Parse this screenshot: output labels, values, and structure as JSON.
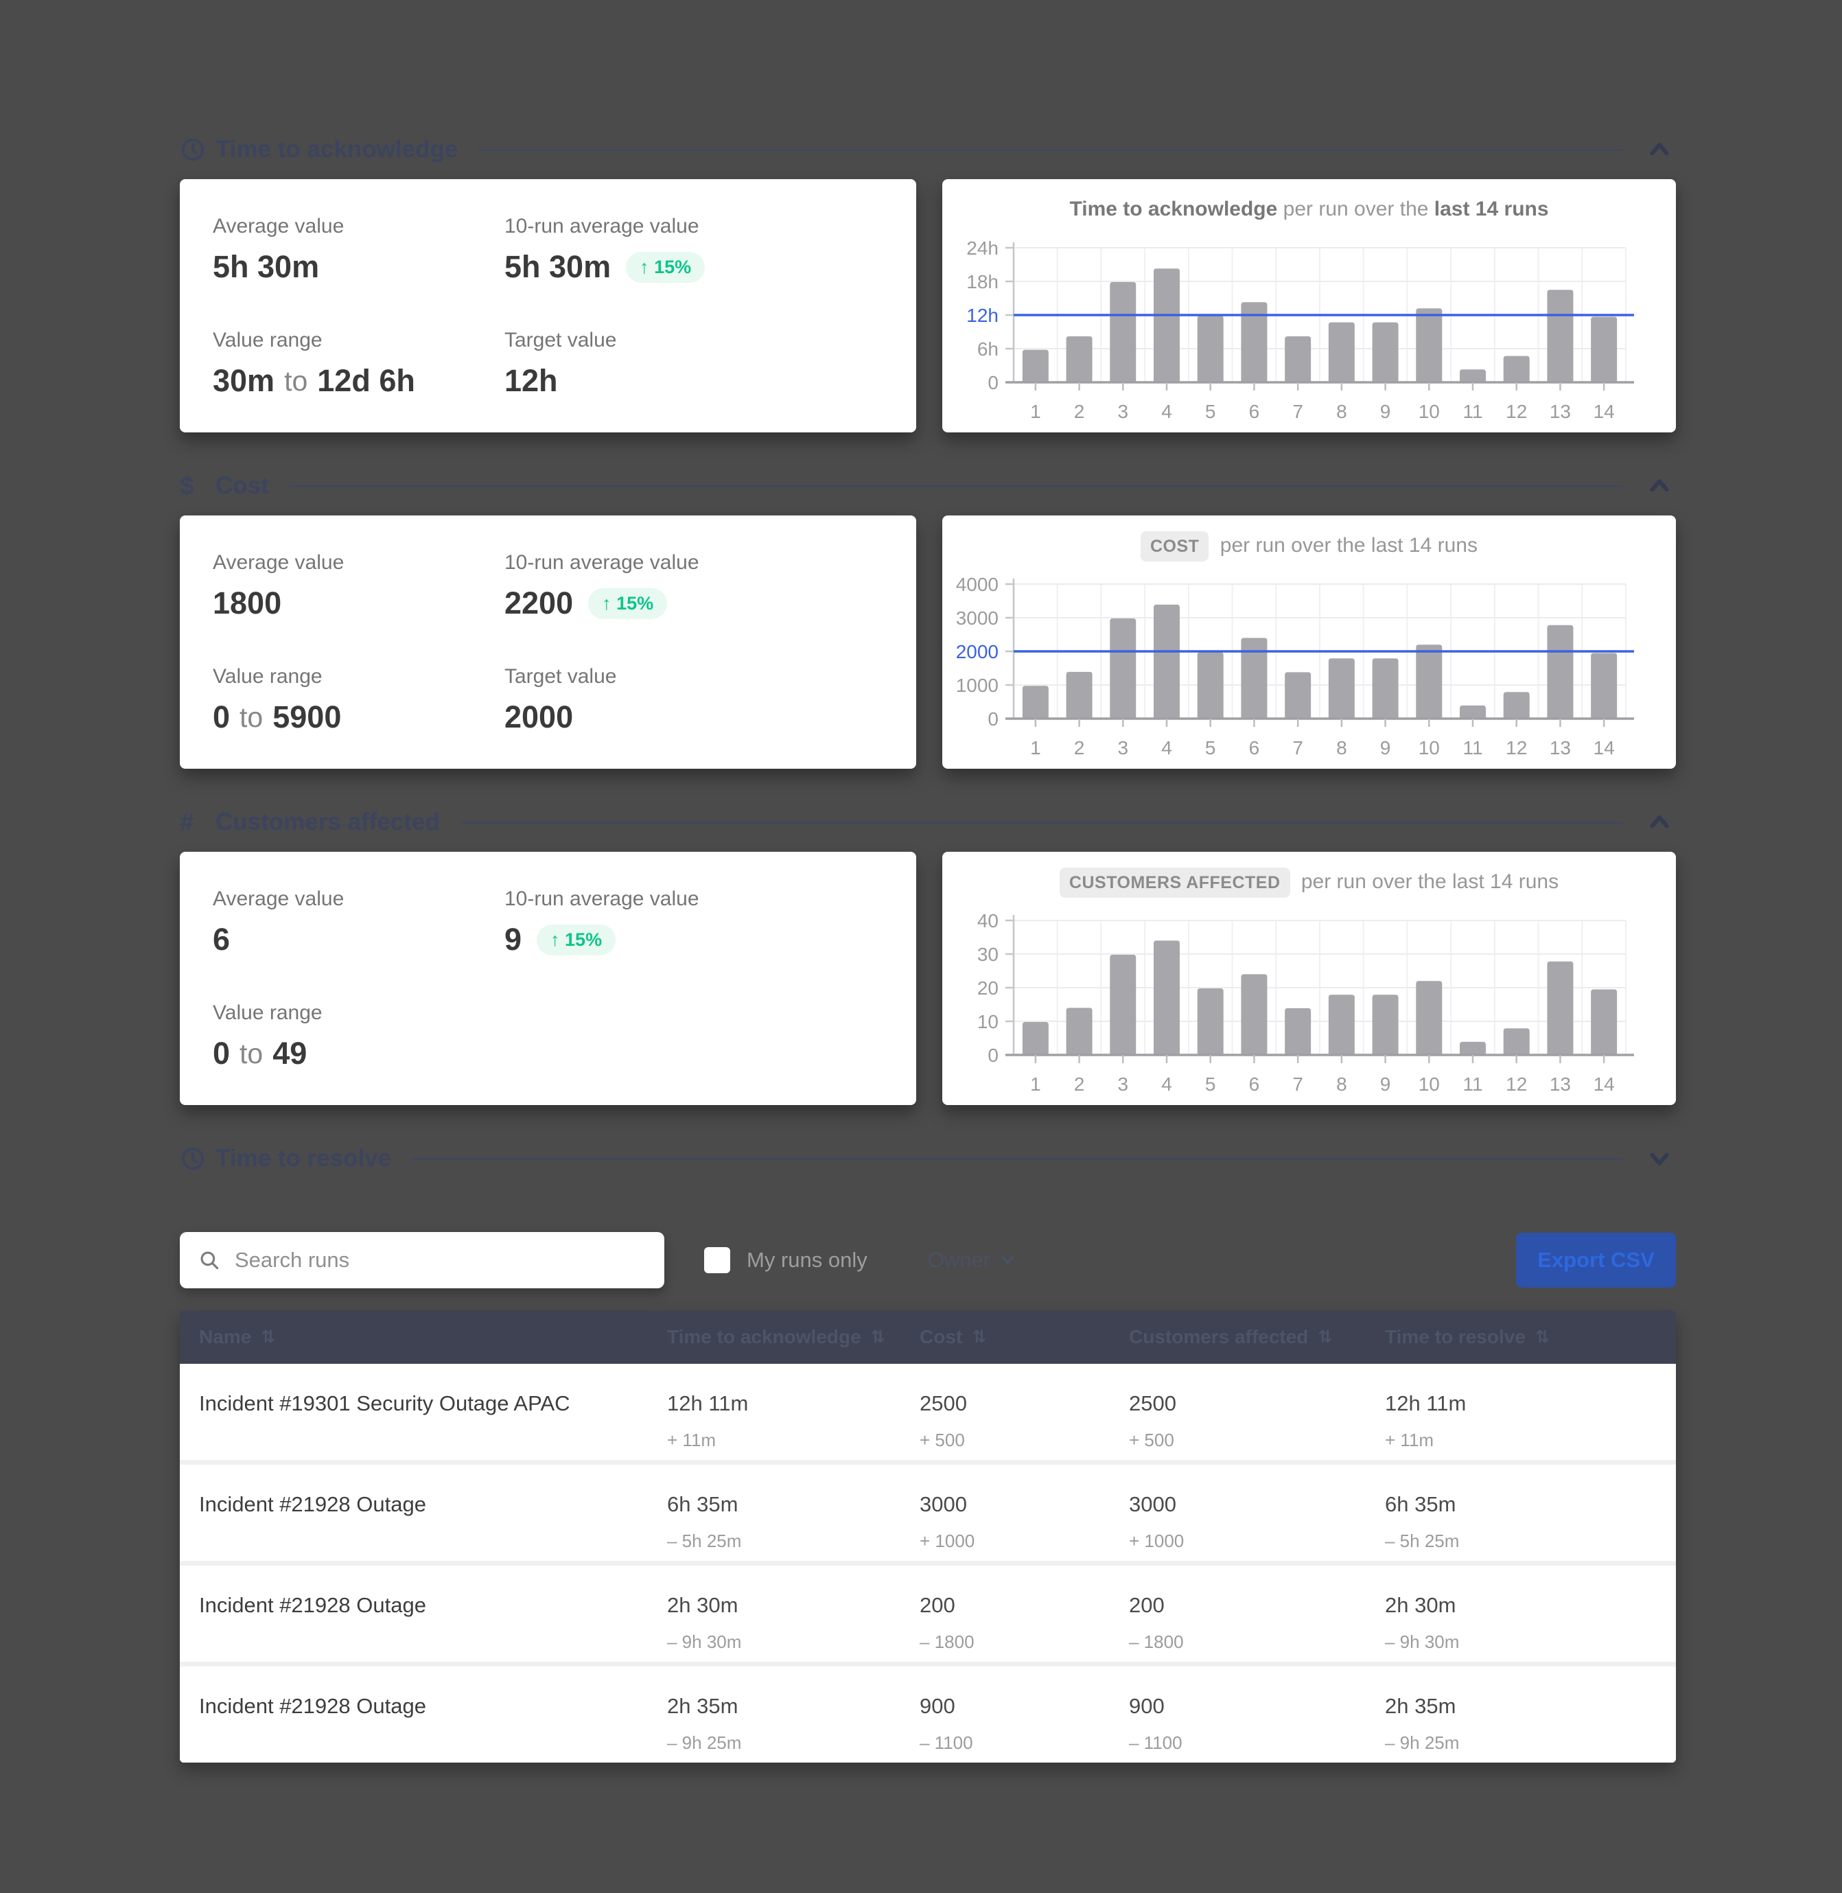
{
  "page": {
    "background": "#4b4b4b"
  },
  "colors": {
    "accent_blue": "#3a63e2",
    "bar_gray": "#a7a7ab",
    "badge_green": "#0fc48c",
    "badge_bg": "#e7f9f1",
    "section_title": "#3c445e",
    "table_header_bg": "#3e4252",
    "export_btn_bg": "#2d52ab",
    "export_btn_text": "#2e68de"
  },
  "sections": [
    {
      "title": "Time to acknowledge",
      "icon": "clock-icon",
      "collapsed": false,
      "chevron": "chevron-up-icon",
      "chart_ref": 0,
      "card": {
        "metrics": [
          {
            "label": "Average value",
            "value": "5h 30m"
          },
          {
            "label": "10-run average value",
            "value": "5h 30m",
            "badge": "↑ 15%"
          },
          {
            "label": "Value range",
            "from": "30m",
            "joiner": "to",
            "to": "12d 6h"
          },
          {
            "label": "Target value",
            "value": "12h"
          }
        ]
      }
    },
    {
      "title": "Cost",
      "icon": "dollar-icon",
      "collapsed": false,
      "chevron": "chevron-up-icon",
      "chart_ref": 1,
      "card": {
        "metrics": [
          {
            "label": "Average value",
            "value": "1800"
          },
          {
            "label": "10-run average value",
            "value": "2200",
            "badge": "↑ 15%"
          },
          {
            "label": "Value range",
            "from": "0",
            "joiner": "to",
            "to": "5900"
          },
          {
            "label": "Target value",
            "value": "2000"
          }
        ]
      }
    },
    {
      "title": "Customers affected",
      "icon": "hash-icon",
      "collapsed": false,
      "chevron": "chevron-up-icon",
      "chart_ref": 2,
      "card": {
        "metrics": [
          {
            "label": "Average value",
            "value": "6"
          },
          {
            "label": "10-run average value",
            "value": "9",
            "badge": "↑ 15%"
          },
          {
            "label": "Value range",
            "from": "0",
            "joiner": "to",
            "to": "49"
          }
        ]
      }
    },
    {
      "title": "Time to resolve",
      "icon": "clock-icon",
      "collapsed": true,
      "chevron": "chevron-down-icon"
    }
  ],
  "chart_data": [
    {
      "type": "bar",
      "title_segments": [
        {
          "text": "Time to acknowledge",
          "style": "bold"
        },
        {
          "text": " per run over the ",
          "style": "normal"
        },
        {
          "text": "last 14 runs",
          "style": "bold"
        }
      ],
      "categories": [
        "1",
        "2",
        "3",
        "4",
        "5",
        "6",
        "7",
        "8",
        "9",
        "10",
        "11",
        "12",
        "13",
        "14"
      ],
      "values": [
        5.8,
        8.2,
        17.9,
        20.3,
        11.9,
        14.3,
        8.2,
        10.7,
        10.7,
        13.2,
        2.3,
        4.7,
        16.5,
        11.7
      ],
      "unit": "hours",
      "ylim": [
        0,
        24
      ],
      "yticks": [
        {
          "v": 0,
          "label": "0"
        },
        {
          "v": 6,
          "label": "6h"
        },
        {
          "v": 12,
          "label": "12h"
        },
        {
          "v": 18,
          "label": "18h"
        },
        {
          "v": 24,
          "label": "24h"
        }
      ],
      "target": {
        "v": 12,
        "label": "12h"
      },
      "grid": true,
      "legend": "none"
    },
    {
      "type": "bar",
      "title_segments": [
        {
          "text": "COST",
          "style": "pill"
        },
        {
          "text": " per run over the last 14 runs",
          "style": "normal"
        }
      ],
      "categories": [
        "1",
        "2",
        "3",
        "4",
        "5",
        "6",
        "7",
        "8",
        "9",
        "10",
        "11",
        "12",
        "13",
        "14"
      ],
      "values": [
        975,
        1390,
        2980,
        3390,
        1975,
        2400,
        1380,
        1790,
        1790,
        2200,
        390,
        790,
        2780,
        1950
      ],
      "unit": "cost",
      "ylim": [
        0,
        4000
      ],
      "yticks": [
        {
          "v": 0,
          "label": "0"
        },
        {
          "v": 1000,
          "label": "1000"
        },
        {
          "v": 2000,
          "label": "2000"
        },
        {
          "v": 3000,
          "label": "3000"
        },
        {
          "v": 4000,
          "label": "4000"
        }
      ],
      "target": {
        "v": 2000,
        "label": "2000"
      },
      "grid": true,
      "legend": "none"
    },
    {
      "type": "bar",
      "title_segments": [
        {
          "text": "CUSTOMERS AFFECTED",
          "style": "pill"
        },
        {
          "text": " per run over the last 14 runs",
          "style": "normal"
        }
      ],
      "categories": [
        "1",
        "2",
        "3",
        "4",
        "5",
        "6",
        "7",
        "8",
        "9",
        "10",
        "11",
        "12",
        "13",
        "14"
      ],
      "values": [
        9.8,
        14,
        29.8,
        34,
        19.8,
        24,
        13.9,
        17.9,
        17.9,
        22,
        3.9,
        7.9,
        27.8,
        19.5
      ],
      "unit": "customers",
      "ylim": [
        0,
        40
      ],
      "yticks": [
        {
          "v": 0,
          "label": "0"
        },
        {
          "v": 10,
          "label": "10"
        },
        {
          "v": 20,
          "label": "20"
        },
        {
          "v": 30,
          "label": "30"
        },
        {
          "v": 40,
          "label": "40"
        }
      ],
      "target": null,
      "grid": true,
      "legend": "none"
    }
  ],
  "toolbar": {
    "search_placeholder": "Search runs",
    "search_icon": "search-icon",
    "my_runs_label": "My runs only",
    "my_runs_checked": false,
    "owner_label": "Owner",
    "owner_icon": "caret-down-icon",
    "export_label": "Export CSV"
  },
  "table": {
    "columns": [
      {
        "label": "Name",
        "sort_icon": "⇅"
      },
      {
        "label": "Time to acknowledge",
        "sort_icon": "⇅"
      },
      {
        "label": "Cost",
        "sort_icon": "⇅"
      },
      {
        "label": "Customers affected",
        "sort_icon": "⇅"
      },
      {
        "label": "Time to resolve",
        "sort_icon": "⇅"
      }
    ],
    "rows": [
      {
        "name": "Incident #19301 Security Outage APAC",
        "cells": [
          {
            "value": "12h 11m",
            "delta": "+ 11m"
          },
          {
            "value": "2500",
            "delta": "+ 500"
          },
          {
            "value": "2500",
            "delta": "+ 500"
          },
          {
            "value": "12h 11m",
            "delta": "+ 11m"
          }
        ]
      },
      {
        "name": "Incident #21928 Outage",
        "cells": [
          {
            "value": "6h 35m",
            "delta": "– 5h 25m"
          },
          {
            "value": "3000",
            "delta": "+ 1000"
          },
          {
            "value": "3000",
            "delta": "+ 1000"
          },
          {
            "value": "6h 35m",
            "delta": "– 5h 25m"
          }
        ]
      },
      {
        "name": "Incident #21928 Outage",
        "cells": [
          {
            "value": "2h 30m",
            "delta": "– 9h 30m"
          },
          {
            "value": "200",
            "delta": "– 1800"
          },
          {
            "value": "200",
            "delta": "– 1800"
          },
          {
            "value": "2h 30m",
            "delta": "– 9h 30m"
          }
        ]
      },
      {
        "name": "Incident #21928 Outage",
        "cells": [
          {
            "value": "2h 35m",
            "delta": "– 9h 25m"
          },
          {
            "value": "900",
            "delta": "– 1100"
          },
          {
            "value": "900",
            "delta": "– 1100"
          },
          {
            "value": "2h 35m",
            "delta": "– 9h 25m"
          }
        ]
      }
    ]
  }
}
